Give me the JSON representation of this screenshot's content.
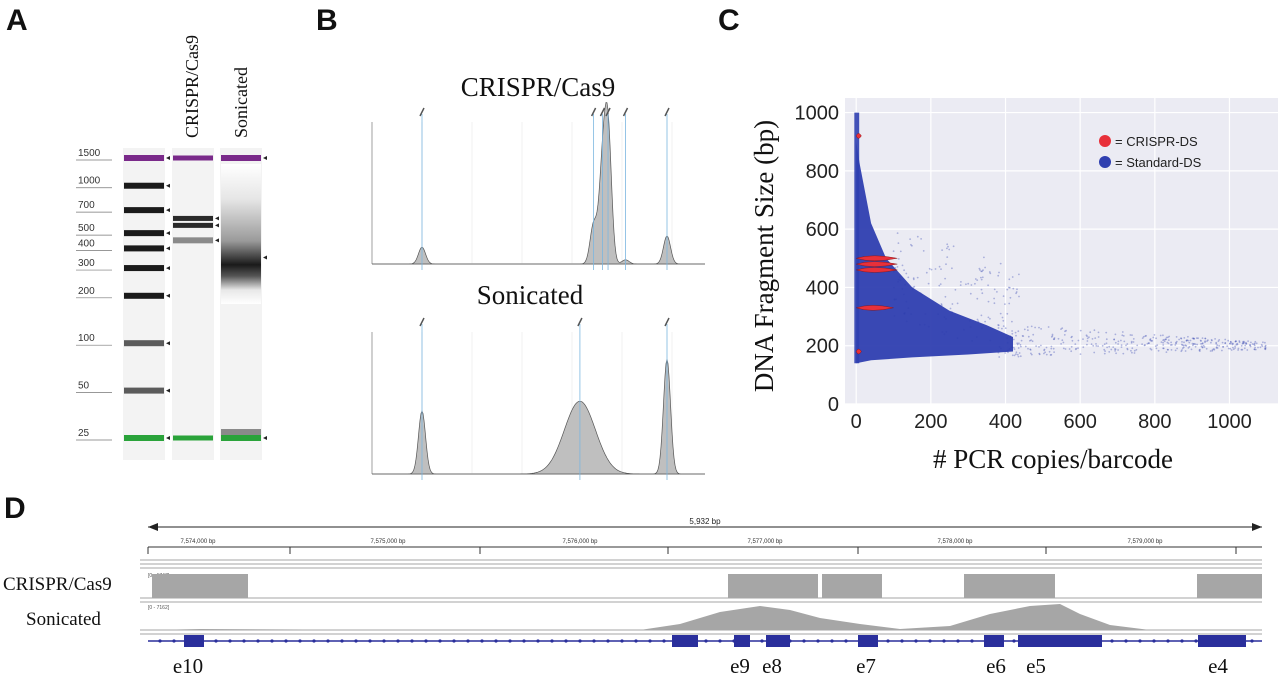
{
  "panels": {
    "a": "A",
    "b": "B",
    "c": "C",
    "d": "D"
  },
  "chart_data": [
    {
      "type": "gel",
      "lanes": [
        "CRISPR/Cas9",
        "Sonicated"
      ],
      "ladder_labels": [
        "1500",
        "1000",
        "700",
        "500",
        "400",
        "300",
        "200",
        "100",
        "50",
        "25"
      ],
      "ladder_values": [
        1500,
        1000,
        700,
        500,
        400,
        300,
        200,
        100,
        50,
        25
      ],
      "crispr_bands_bp": [
        1500,
        620,
        560,
        450,
        25
      ],
      "sonicated_bands_bp": [
        1500,
        350,
        25
      ],
      "colors": {
        "upper_marker": "#7a2a8a",
        "lower_marker": "#2aa33a"
      }
    },
    {
      "type": "area",
      "title": "CRISPR/Cas9",
      "peaks_bp": [
        25,
        440,
        510,
        560,
        750,
        1500
      ],
      "relative_heights": [
        0.12,
        0.28,
        0.62,
        0.92,
        0.03,
        0.2
      ],
      "color": "#bfbfbf"
    },
    {
      "type": "area",
      "title": "Sonicated",
      "peaks_bp": [
        25,
        350,
        1500
      ],
      "relative_heights": [
        0.45,
        0.52,
        0.82
      ],
      "color": "#bfbfbf"
    },
    {
      "type": "scatter",
      "xlabel": "# PCR copies/barcode",
      "ylabel": "DNA Fragment Size (bp)",
      "xlim": [
        -30,
        1130
      ],
      "ylim": [
        0,
        1050
      ],
      "xticks": [
        "0",
        "200",
        "400",
        "600",
        "800",
        "1000"
      ],
      "xtick_values": [
        0,
        200,
        400,
        600,
        800,
        1000
      ],
      "yticks": [
        "0",
        "200",
        "400",
        "600",
        "800",
        "1000"
      ],
      "ytick_values": [
        0,
        200,
        400,
        600,
        800,
        1000
      ],
      "grid": true,
      "legend_position": "top-right",
      "series": [
        {
          "name": "= CRISPR-DS",
          "color": "#e8303a",
          "values_y": [
            920,
            500,
            480,
            460,
            330,
            180
          ]
        },
        {
          "name": "= Standard-DS",
          "color": "#2f3fb0"
        }
      ]
    },
    {
      "type": "coverage-track",
      "span_label": "5,932 bp",
      "coord_labels": [
        "7,574,000 bp",
        "7,575,000 bp",
        "7,576,000 bp",
        "7,577,000 bp",
        "7,578,000 bp",
        "7,579,000 bp"
      ],
      "tracks": [
        {
          "name": "CRISPR/Cas9",
          "range": "[0 - 1747]"
        },
        {
          "name": "Sonicated",
          "range": "[0 - 7162]"
        }
      ],
      "exons": [
        "e10",
        "e9",
        "e8",
        "e7",
        "e6",
        "e5",
        "e4"
      ],
      "colors": {
        "coverage": "#a6a6a6",
        "gene": "#2a2f9c"
      }
    }
  ]
}
